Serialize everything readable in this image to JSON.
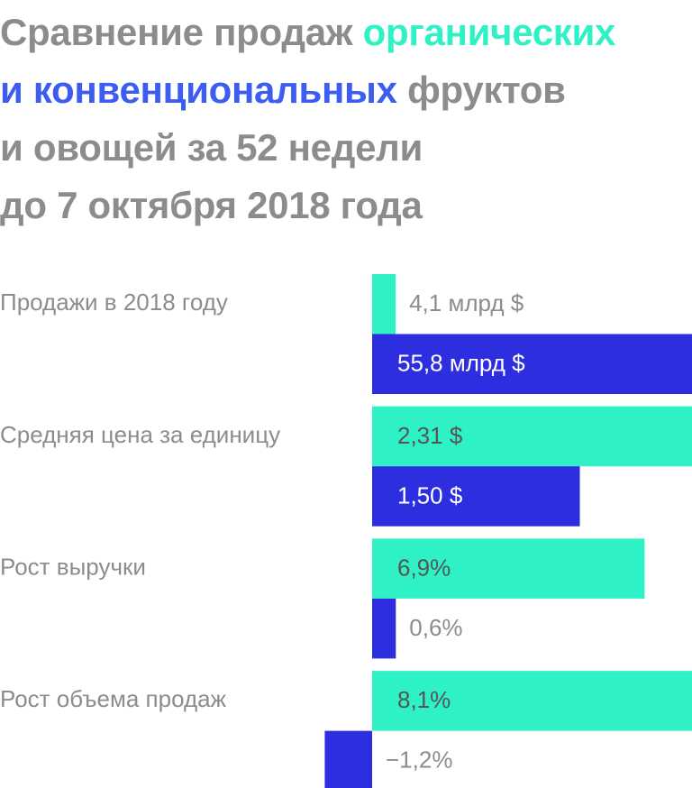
{
  "chart_data": {
    "type": "bar",
    "orientation": "horizontal",
    "title": [
      "Сравнение продаж",
      "органических",
      "и конвенциональных",
      "фруктов",
      "и овощей за 52 недели",
      "до 7 октября 2018 года"
    ],
    "categories": [
      "Продажи в 2018 году",
      "Средняя цена за единицу",
      "Рост выручки",
      "Рост объема продаж"
    ],
    "xlims": [
      [
        0,
        55.8
      ],
      [
        0,
        2.31
      ],
      [
        0,
        8.1
      ],
      [
        0,
        8.1
      ]
    ],
    "series": [
      {
        "name": "органических",
        "color": "#2ef2c6",
        "values": [
          4.1,
          2.31,
          6.9,
          8.1
        ],
        "value_labels": [
          "4,1 млрд $",
          "2,31 $",
          "6,9%",
          "8,1%"
        ]
      },
      {
        "name": "и конвенциональных",
        "color": "#2d2ee0",
        "values": [
          55.8,
          1.5,
          0.6,
          -1.2
        ],
        "value_labels": [
          "55,8 млрд $",
          "1,50 $",
          "0,6%",
          "−1,2%"
        ]
      }
    ]
  }
}
